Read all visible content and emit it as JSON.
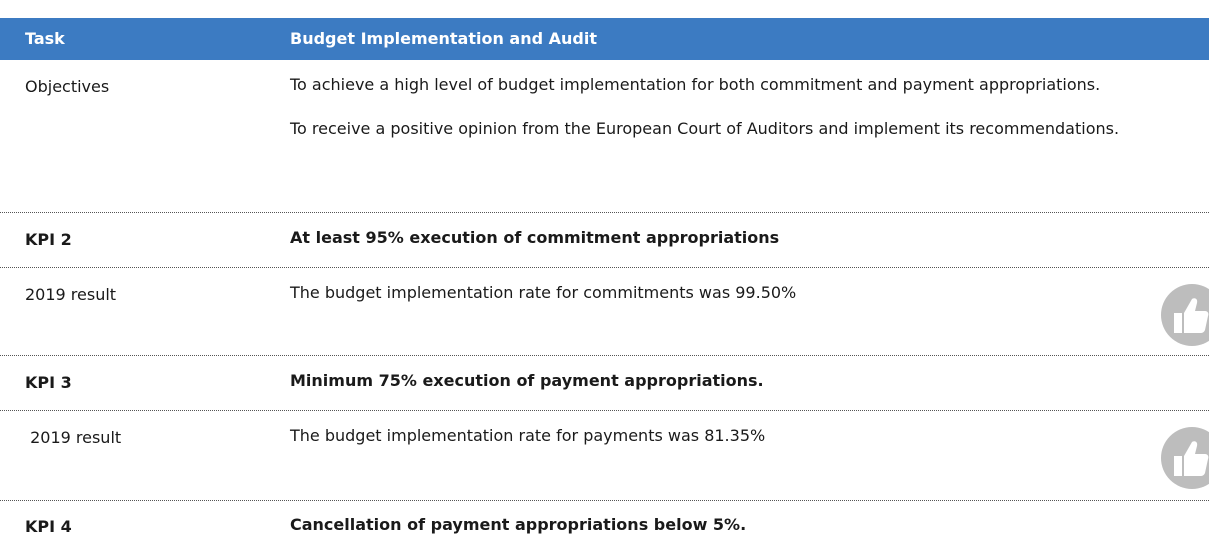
{
  "header": {
    "columns": [
      "Task",
      "Budget Implementation and Audit"
    ]
  },
  "table": {
    "rows": [
      {
        "label": "Objectives",
        "text": [
          "To achieve a high level of budget implementation for both commitment and payment appropriations.",
          "To receive a positive opinion from the European Court of Auditors and implement its recommendations."
        ]
      },
      {
        "label": "KPI 2",
        "text": [
          "At least 95% execution of commitment appropriations"
        ]
      },
      {
        "label": "2019 result",
        "text": [
          "The budget implementation rate for commitments was 99.50%"
        ]
      },
      {
        "label": "KPI 3",
        "text": [
          "Minimum 75% execution of payment appropriations."
        ]
      },
      {
        "label": " 2019 result",
        "text": [
          "The budget implementation rate for payments was 81.35%"
        ]
      },
      {
        "label": "KPI 4",
        "text": [
          "Cancellation of payment appropriations below 5%."
        ]
      }
    ]
  }
}
